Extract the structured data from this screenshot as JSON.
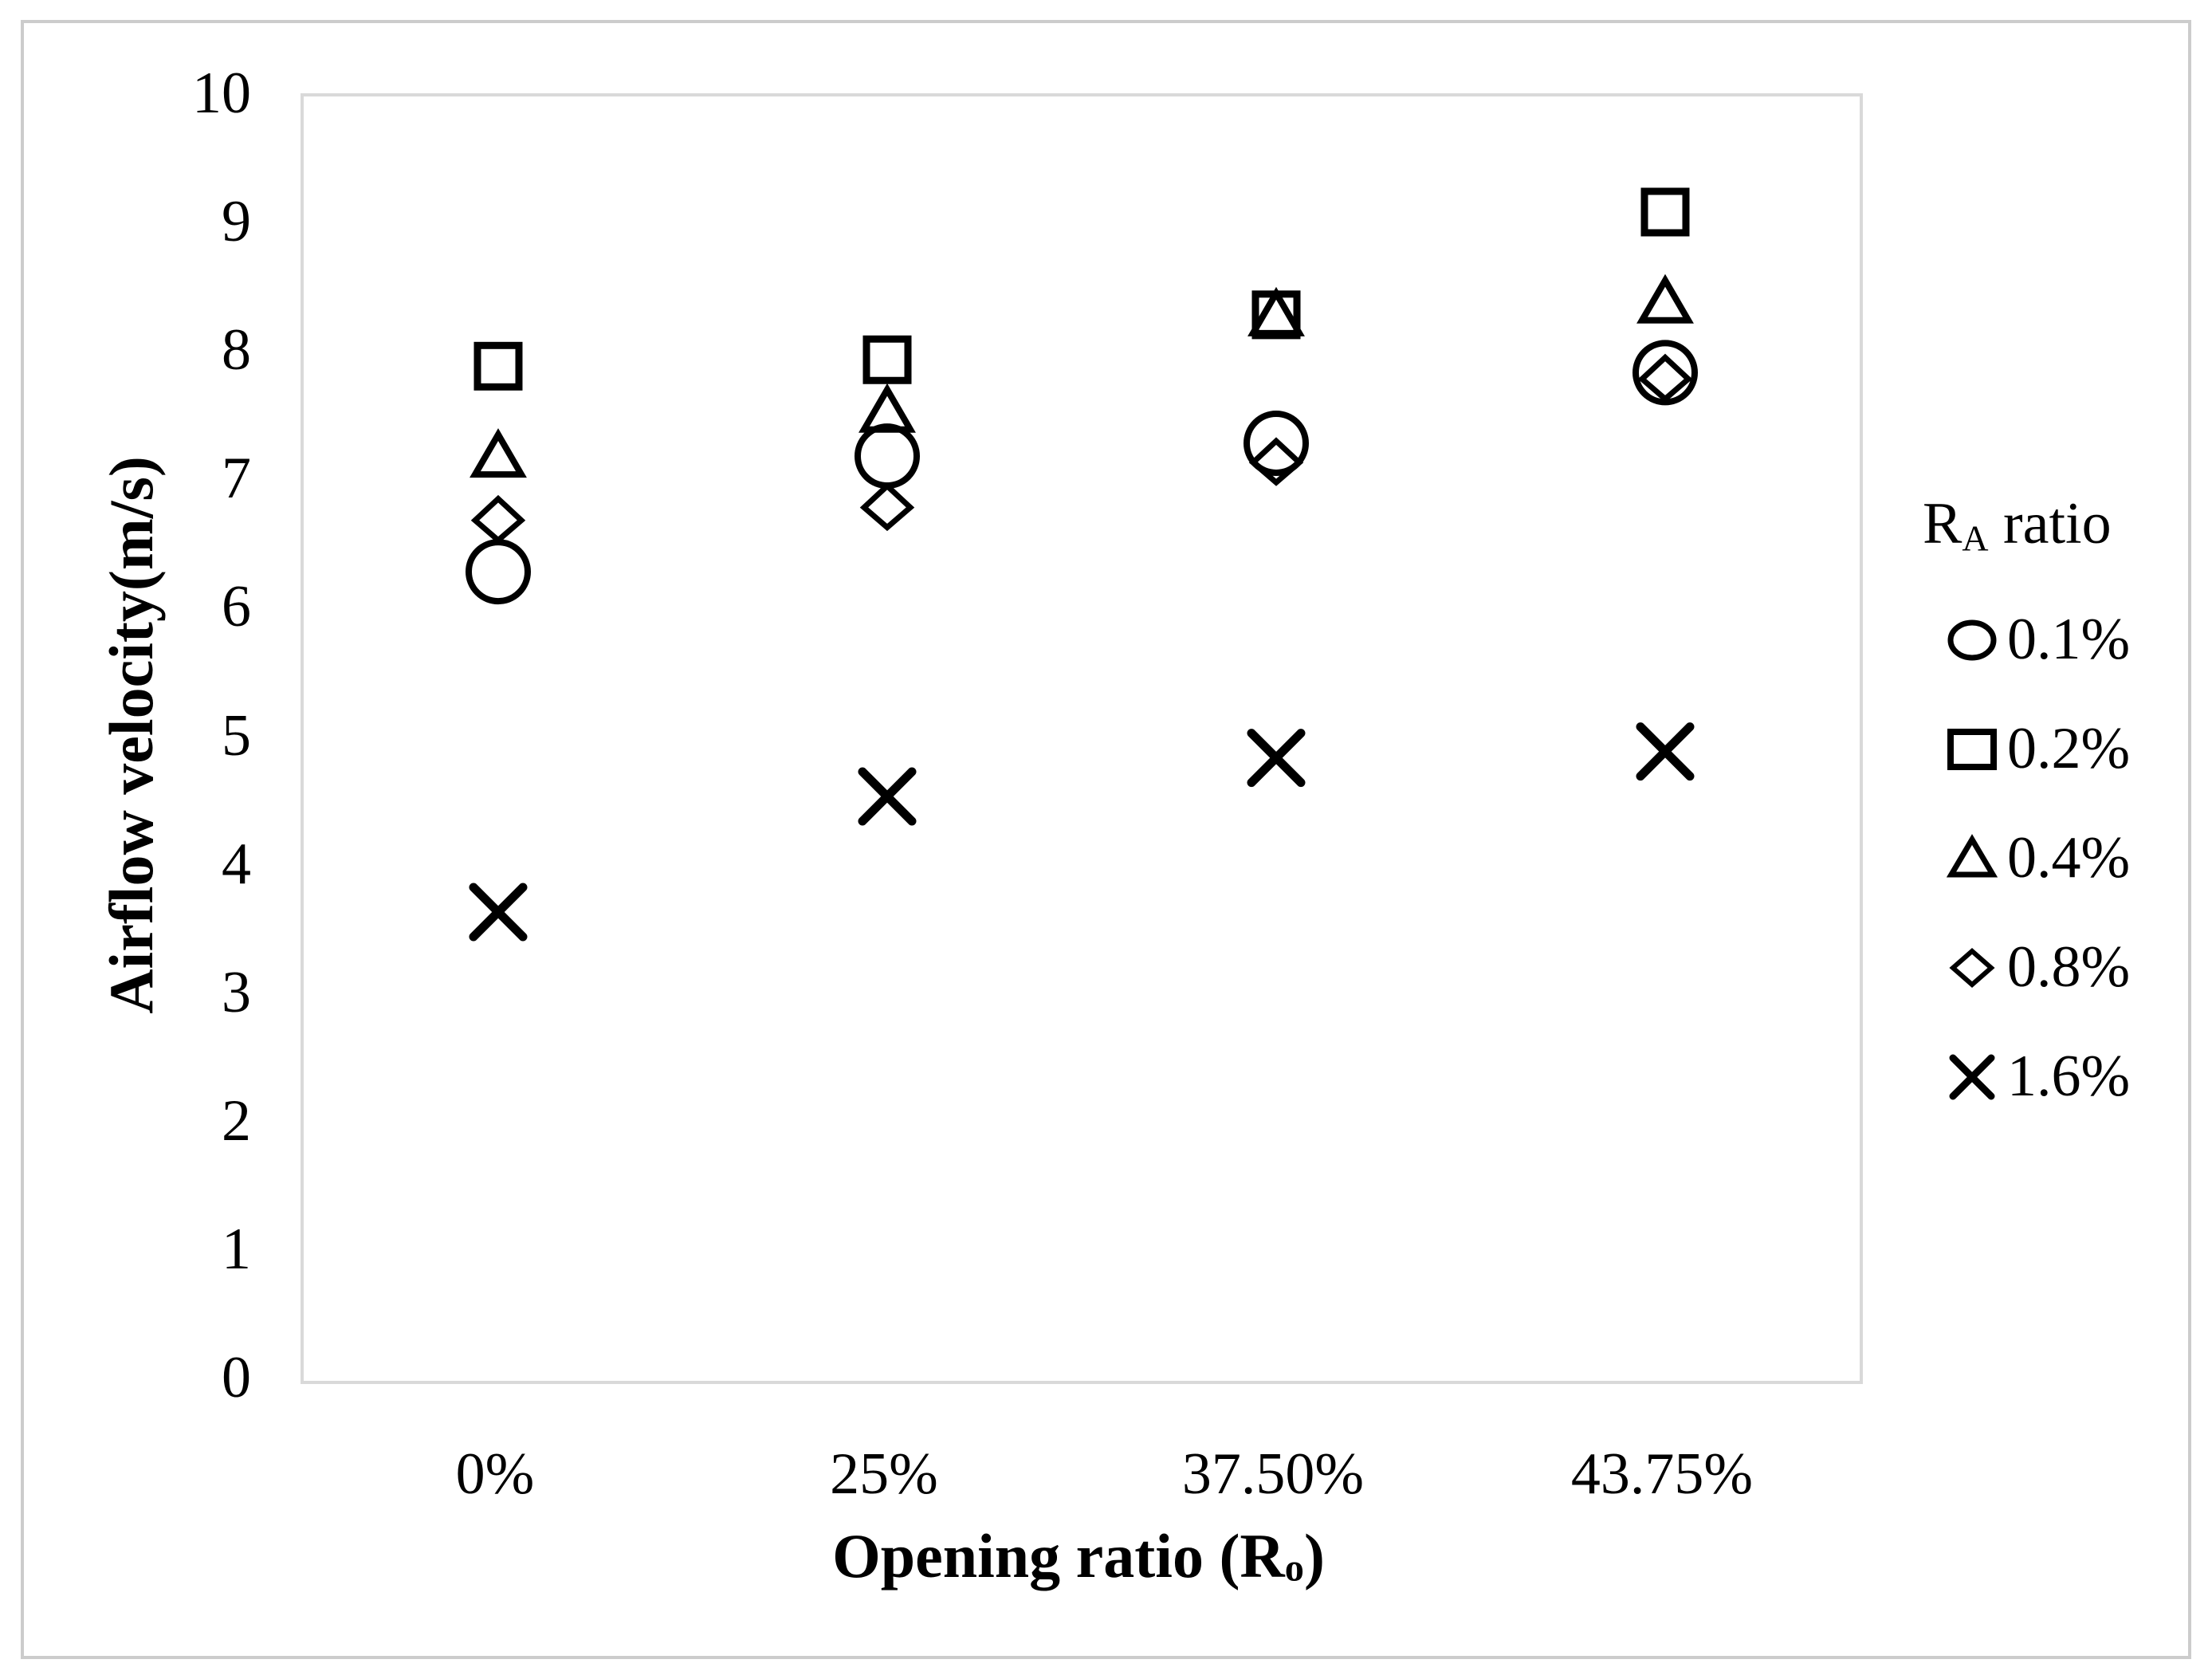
{
  "figure": {
    "background_color": "#ffffff",
    "frame_color": "#cccccc",
    "plot_border_color": "#d9d9d9",
    "marker_color": "#000000",
    "text_color": "#000000"
  },
  "y_axis": {
    "title": "Airflow velocity(m/s)",
    "ticks": [
      "0",
      "1",
      "2",
      "3",
      "4",
      "5",
      "6",
      "7",
      "8",
      "9",
      "10"
    ],
    "min": 0,
    "max": 10
  },
  "x_axis": {
    "title_main": "Opening ratio (R",
    "title_sub": "o",
    "title_end": ")",
    "categories": [
      "0%",
      "25%",
      "37.50%",
      "43.75%"
    ]
  },
  "legend": {
    "title_main": "R",
    "title_sub": "A",
    "title_end": " ratio",
    "items": [
      {
        "label": "0.1%",
        "marker": "circle"
      },
      {
        "label": "0.2%",
        "marker": "square"
      },
      {
        "label": "0.4%",
        "marker": "triangle"
      },
      {
        "label": "0.8%",
        "marker": "diamond"
      },
      {
        "label": "1.6%",
        "marker": "x"
      }
    ]
  },
  "chart_data": {
    "type": "scatter",
    "categories": [
      "0%",
      "25%",
      "37.50%",
      "43.75%"
    ],
    "series": [
      {
        "name": "0.1%",
        "marker": "circle",
        "values": [
          6.3,
          7.2,
          7.3,
          7.85
        ]
      },
      {
        "name": "0.2%",
        "marker": "square",
        "values": [
          7.9,
          7.95,
          8.3,
          9.1
        ]
      },
      {
        "name": "0.4%",
        "marker": "triangle",
        "values": [
          7.2,
          7.55,
          8.3,
          8.4
        ]
      },
      {
        "name": "0.8%",
        "marker": "diamond",
        "values": [
          6.7,
          6.8,
          7.15,
          7.8
        ]
      },
      {
        "name": "1.6%",
        "marker": "x",
        "values": [
          3.65,
          4.55,
          4.85,
          4.9
        ]
      }
    ],
    "title": "",
    "xlabel": "Opening ratio (Ro)",
    "ylabel": "Airflow velocity(m/s)",
    "ylim": [
      0,
      10
    ],
    "grid": false,
    "legend_position": "right",
    "legend_title": "RA ratio"
  }
}
